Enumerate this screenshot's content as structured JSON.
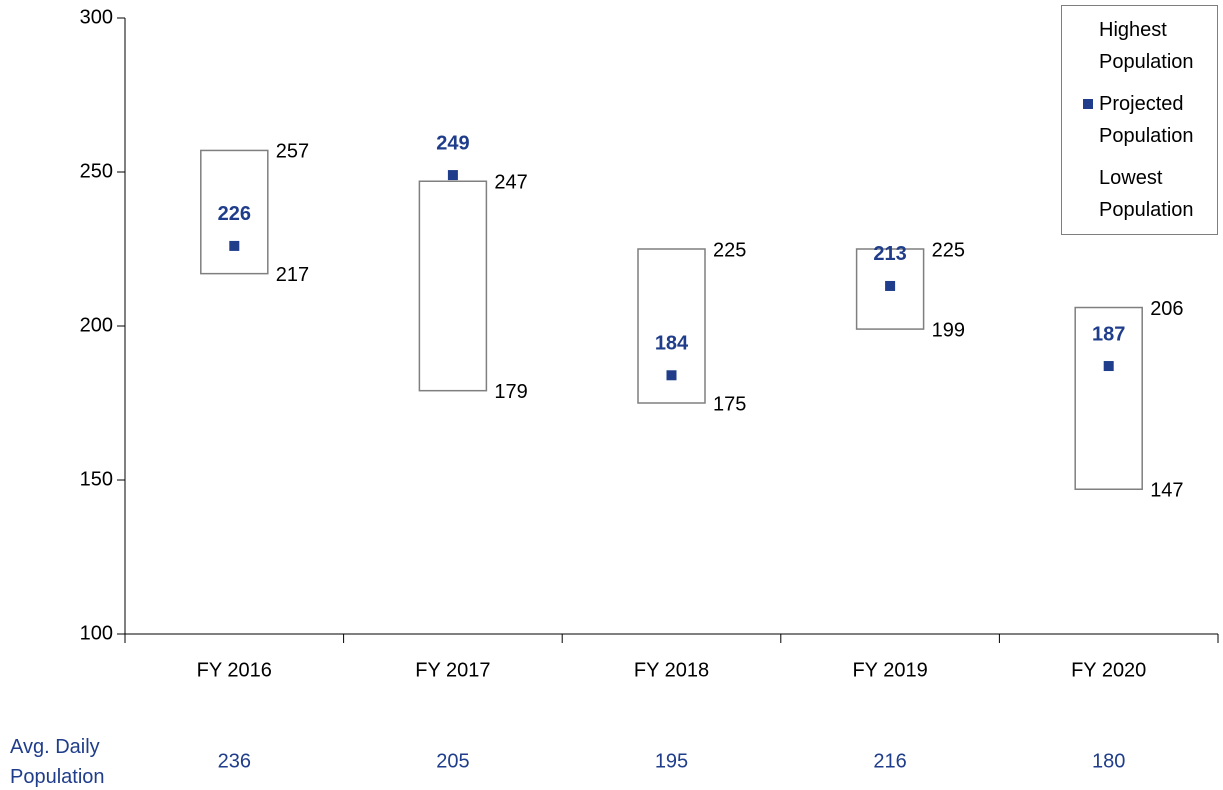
{
  "chart_data": {
    "type": "range",
    "categories": [
      "FY 2016",
      "FY 2017",
      "FY 2018",
      "FY 2019",
      "FY 2020"
    ],
    "series": [
      {
        "name": "Highest Population",
        "values": [
          257,
          247,
          225,
          225,
          206
        ]
      },
      {
        "name": "Projected Population",
        "color": "#1f3d8a",
        "values": [
          226,
          249,
          184,
          213,
          187
        ]
      },
      {
        "name": "Lowest Population",
        "values": [
          217,
          179,
          175,
          199,
          147
        ]
      }
    ],
    "box_color": "#7f7f7f",
    "ylim": [
      100,
      300
    ],
    "yticks": [
      100,
      150,
      200,
      250,
      300
    ],
    "legend": "upper right",
    "table": {
      "label": "Avg. Daily Population",
      "color": "#1f3d8a",
      "values": [
        236,
        205,
        195,
        216,
        180
      ]
    }
  }
}
